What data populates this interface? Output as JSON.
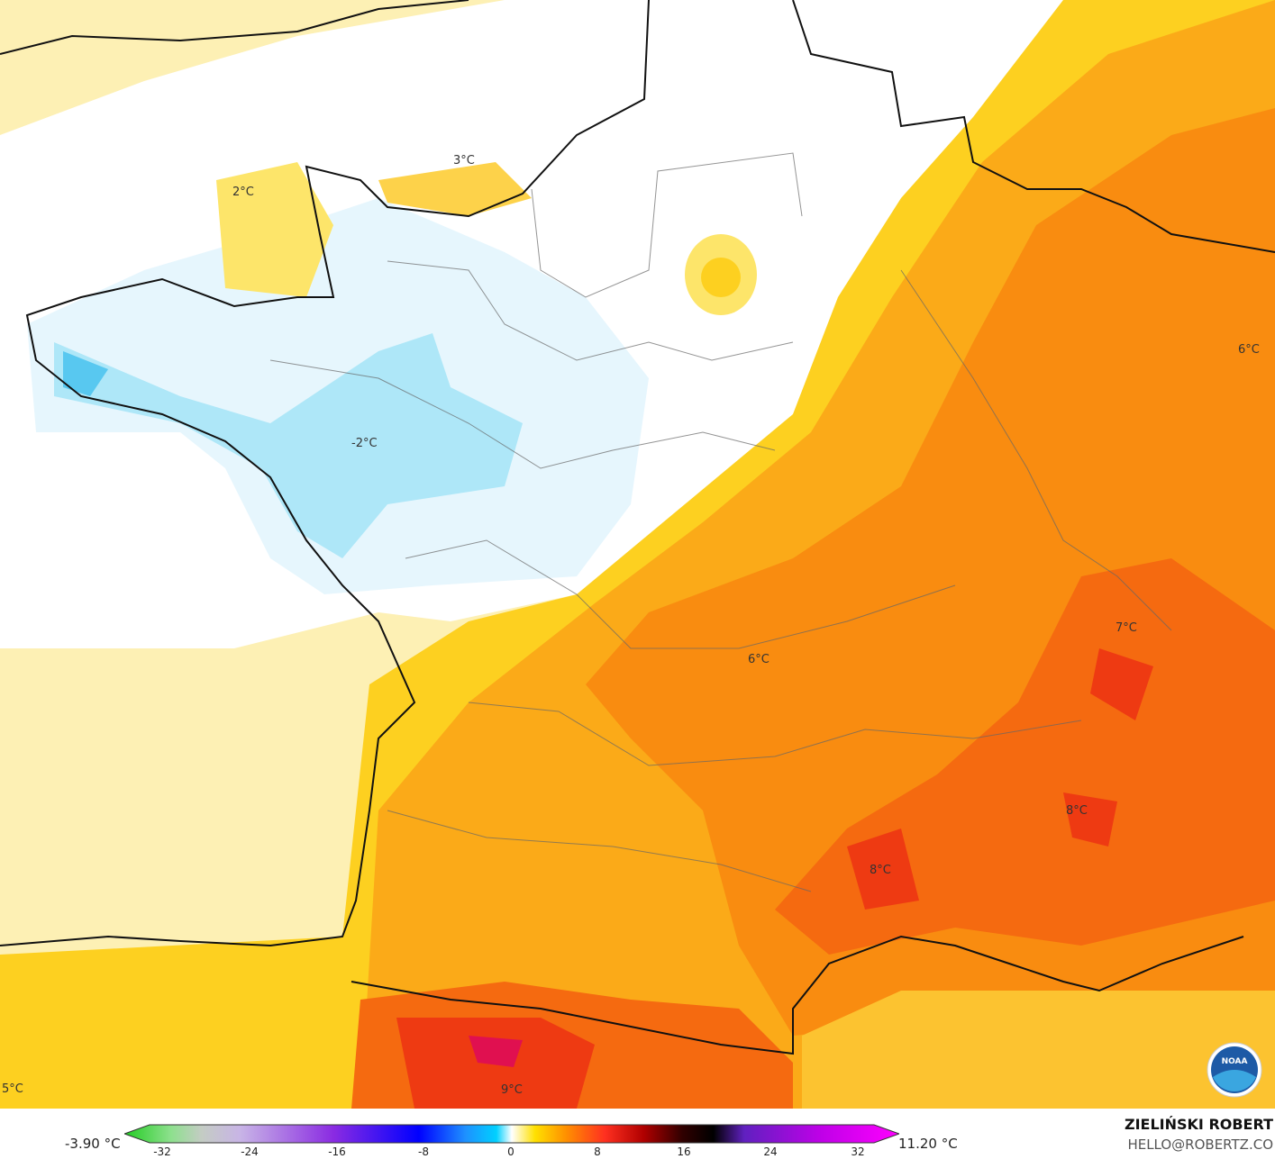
{
  "map": {
    "variable_unit": "°C",
    "isotherm_labels": [
      {
        "text": "3°C"
      },
      {
        "text": "2°C"
      },
      {
        "text": "-2°C"
      },
      {
        "text": "6°C"
      },
      {
        "text": "6°C"
      },
      {
        "text": "7°C"
      },
      {
        "text": "8°C"
      },
      {
        "text": "8°C"
      },
      {
        "text": "9°C"
      },
      {
        "text": "5°C"
      }
    ],
    "logo": "NOAA"
  },
  "legend": {
    "min_label": "-3.90 °C",
    "max_label": "11.20 °C",
    "ticks": [
      "-32",
      "-24",
      "-16",
      "-8",
      "0",
      "8",
      "16",
      "24",
      "32"
    ],
    "range": [
      -32,
      32
    ],
    "colors": {
      "cold": "#22cc22",
      "mid": "#ffffff",
      "warm": "#ff3000",
      "hot": "#ff00ff"
    }
  },
  "credit": {
    "author": "ZIELIŃSKI ROBERT",
    "email": "HELLO@ROBERTZ.CO"
  }
}
